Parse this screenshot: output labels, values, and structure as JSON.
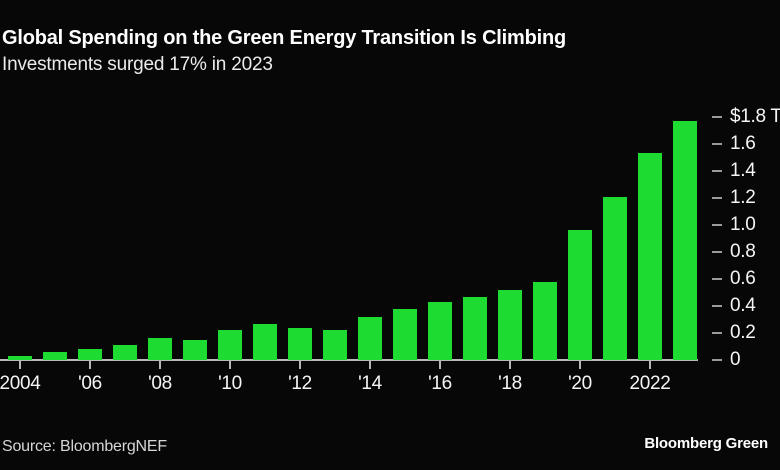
{
  "header": {
    "title": "Global Spending on the Green Energy Transition Is Climbing",
    "subtitle": "Investments surged 17% in 2023"
  },
  "chart_data": {
    "type": "bar",
    "title": "Global Spending on the Green Energy Transition Is Climbing",
    "subtitle": "Investments surged 17% in 2023",
    "unit": "trillion USD",
    "categories": [
      2004,
      2005,
      2006,
      2007,
      2008,
      2009,
      2010,
      2011,
      2012,
      2013,
      2014,
      2015,
      2016,
      2017,
      2018,
      2019,
      2020,
      2021,
      2022,
      2023
    ],
    "values": [
      0.03,
      0.06,
      0.08,
      0.11,
      0.16,
      0.15,
      0.22,
      0.27,
      0.24,
      0.22,
      0.32,
      0.38,
      0.43,
      0.47,
      0.52,
      0.58,
      0.96,
      1.21,
      1.53,
      1.77
    ],
    "ylim": [
      0,
      1.8
    ],
    "grid": false,
    "y_axis_side": "right",
    "x_ticks": [
      {
        "year": 2004,
        "label": "2004"
      },
      {
        "year": 2006,
        "label": "'06"
      },
      {
        "year": 2008,
        "label": "'08"
      },
      {
        "year": 2010,
        "label": "'10"
      },
      {
        "year": 2012,
        "label": "'12"
      },
      {
        "year": 2014,
        "label": "'14"
      },
      {
        "year": 2016,
        "label": "'16"
      },
      {
        "year": 2018,
        "label": "'18"
      },
      {
        "year": 2020,
        "label": "'20"
      },
      {
        "year": 2022,
        "label": "2022"
      }
    ],
    "y_ticks": [
      {
        "value": 0,
        "label": "0"
      },
      {
        "value": 0.2,
        "label": "0.2"
      },
      {
        "value": 0.4,
        "label": "0.4"
      },
      {
        "value": 0.6,
        "label": "0.6"
      },
      {
        "value": 0.8,
        "label": "0.8"
      },
      {
        "value": 1.0,
        "label": "1.0"
      },
      {
        "value": 1.2,
        "label": "1.2"
      },
      {
        "value": 1.4,
        "label": "1.4"
      },
      {
        "value": 1.6,
        "label": "1.6"
      },
      {
        "value": 1.8,
        "label": "$1.8 T"
      }
    ],
    "colors": {
      "bar": "#1edb31",
      "background": "#070707",
      "axis": "#b8b8b8",
      "tick_dash": "#9a9a9a",
      "title_text": "#ffffff",
      "label_text": "#f5f5f5"
    }
  },
  "footer": {
    "source": "Source: BloombergNEF",
    "brand": "Bloomberg Green"
  }
}
